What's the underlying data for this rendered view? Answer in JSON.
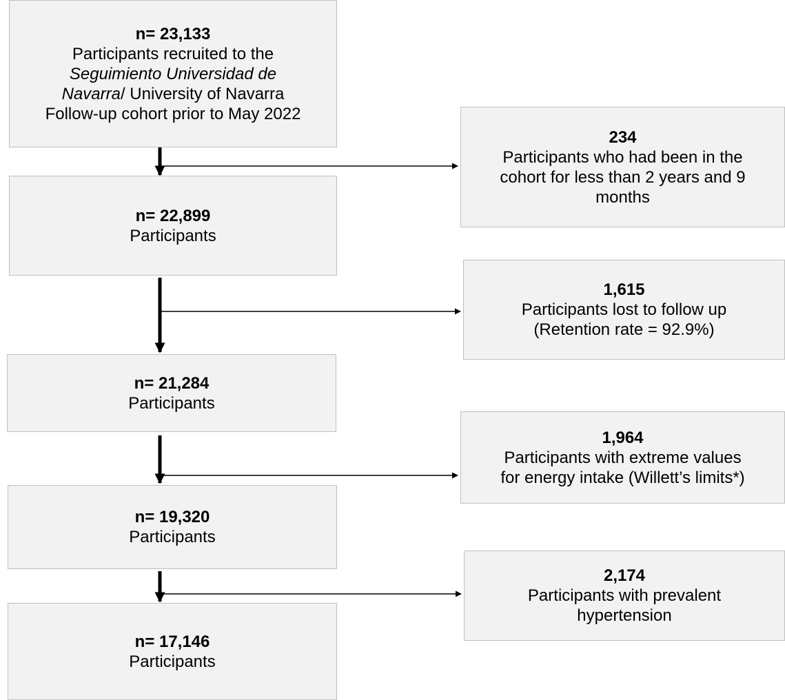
{
  "nodes": [
    {
      "count": "n= 23,133",
      "lines": [
        [
          {
            "text": "Participants recruited to the"
          }
        ],
        [
          {
            "text": "Seguimiento Universidad de",
            "italic": true
          }
        ],
        [
          {
            "text": "Navarra",
            "italic": true
          },
          {
            "text": "/ University of Navarra"
          }
        ],
        [
          {
            "text": "Follow-up cohort prior to May 2022"
          }
        ]
      ]
    },
    {
      "count": "n= 22,899",
      "lines": [
        [
          {
            "text": "Participants"
          }
        ]
      ]
    },
    {
      "count": "n= 21,284",
      "lines": [
        [
          {
            "text": "Participants"
          }
        ]
      ]
    },
    {
      "count": "n= 19,320",
      "lines": [
        [
          {
            "text": "Participants"
          }
        ]
      ]
    },
    {
      "count": "n= 17,146",
      "lines": [
        [
          {
            "text": "Participants"
          }
        ]
      ]
    }
  ],
  "exclusions": [
    {
      "count": "234",
      "lines": [
        [
          {
            "text": "Participants who had been in the"
          }
        ],
        [
          {
            "text": "cohort for less than 2 years and 9"
          }
        ],
        [
          {
            "text": "months"
          }
        ]
      ]
    },
    {
      "count": "1,615",
      "lines": [
        [
          {
            "text": "Participants lost to follow up"
          }
        ],
        [
          {
            "text": "(Retention rate = 92.9%)"
          }
        ]
      ]
    },
    {
      "count": "1,964",
      "lines": [
        [
          {
            "text": "Participants with extreme values"
          }
        ],
        [
          {
            "text": "for energy intake (Willett’s limits*)"
          }
        ]
      ]
    },
    {
      "count": "2,174",
      "lines": [
        [
          {
            "text": "Participants with prevalent"
          }
        ],
        [
          {
            "text": "hypertension"
          }
        ]
      ]
    }
  ]
}
